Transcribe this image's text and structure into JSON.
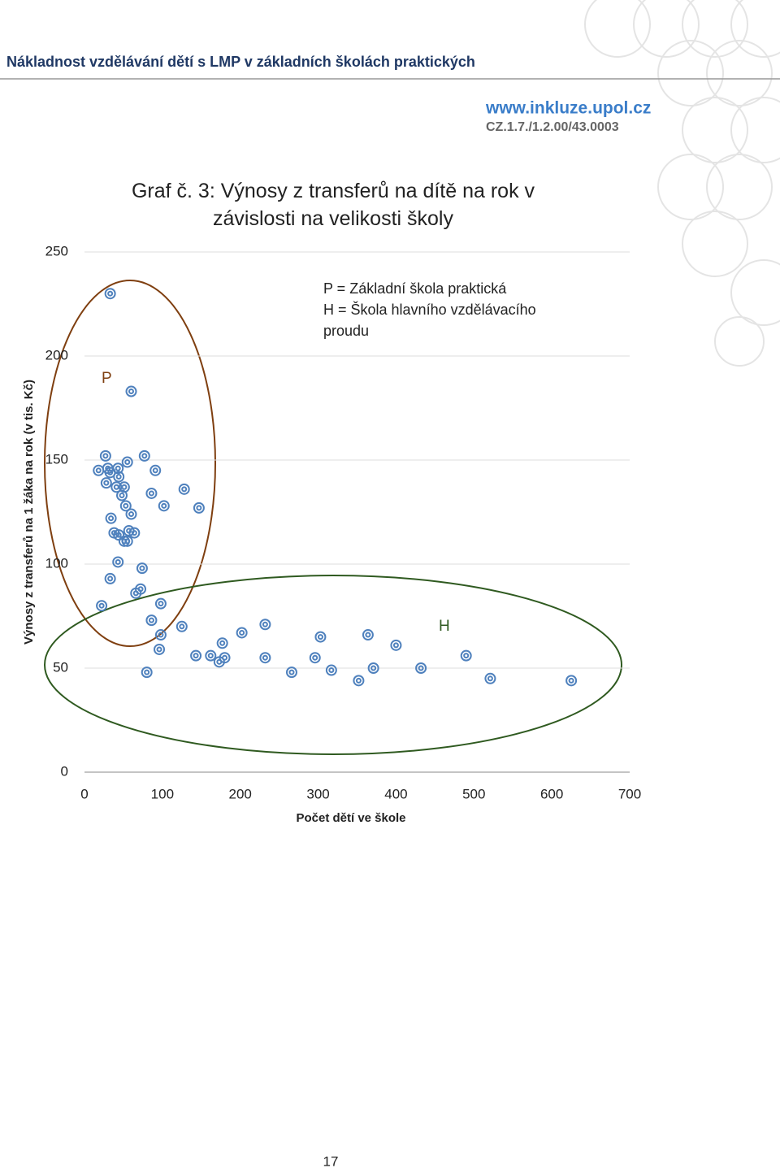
{
  "header": {
    "title": "Nákladnost vzdělávání dětí s LMP v základních školách praktických",
    "website": "www.inkluze.upol.cz",
    "project": "CZ.1.7./1.2.00/43.0003"
  },
  "chart_data": {
    "type": "scatter",
    "title": "Graf č. 3: Výnosy z transferů na dítě na rok v závislosti na velikosti školy",
    "x_label": "Počet dětí ve škole",
    "y_label": "Výnosy z transferů na 1 žáka na rok (v tis. Kč)",
    "notes": [
      "P = Základní škola praktická",
      "H = Škola hlavního vzdělávacího proudu"
    ],
    "annotations": [
      "P",
      "H"
    ],
    "color": "#4f81bd",
    "grid": true,
    "xlim": [
      0,
      700
    ],
    "xticks": [
      0,
      100,
      200,
      300,
      400,
      500,
      600,
      700
    ],
    "ylim": [
      0,
      250
    ],
    "yticks": [
      0,
      50,
      100,
      150,
      200,
      250
    ],
    "x": [
      33,
      60,
      27,
      77,
      55,
      18,
      30,
      43,
      91,
      33,
      44,
      28,
      41,
      51,
      48,
      128,
      86,
      53,
      102,
      147,
      60,
      34,
      38,
      44,
      57,
      64,
      51,
      55,
      43,
      74,
      33,
      72,
      66,
      22,
      98,
      86,
      125,
      98,
      202,
      177,
      232,
      303,
      364,
      400,
      96,
      143,
      162,
      180,
      173,
      232,
      296,
      490,
      80,
      266,
      317,
      371,
      432,
      352,
      521,
      625
    ],
    "y": [
      230,
      183,
      152,
      152,
      149,
      145,
      146,
      146,
      145,
      144,
      142,
      139,
      137,
      137,
      133,
      136,
      134,
      128,
      128,
      127,
      124,
      122,
      115,
      114,
      116,
      115,
      111,
      111,
      101,
      98,
      93,
      88,
      86,
      80,
      81,
      73,
      70,
      66,
      67,
      62,
      71,
      65,
      66,
      61,
      59,
      56,
      56,
      55,
      53,
      55,
      55,
      56,
      48,
      48,
      49,
      50,
      50,
      44,
      45,
      44
    ]
  },
  "page_number": "17"
}
